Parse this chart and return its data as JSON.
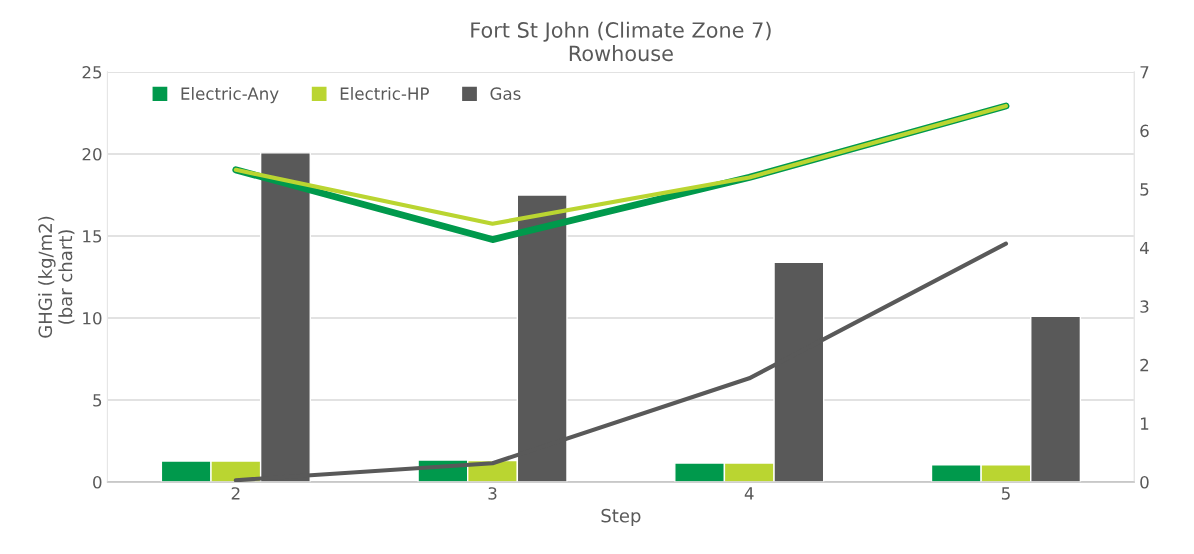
{
  "chart_data": {
    "type": "bar",
    "title": "Fort St John (Climate Zone 7)",
    "subtitle": "Rowhouse",
    "xlabel": "Step",
    "ylabel": "GHGi (kg/m2)\n(bar chart)",
    "categories": [
      "2",
      "3",
      "4",
      "5"
    ],
    "series": [
      {
        "name": "Electric-Any",
        "color": "#00994c",
        "values": [
          1.28,
          1.34,
          1.15,
          1.05
        ]
      },
      {
        "name": "Electric-HP",
        "color": "#bad531",
        "values": [
          1.28,
          1.3,
          1.15,
          1.05
        ]
      },
      {
        "name": "Gas",
        "color": "#595959",
        "values": [
          20.07,
          17.5,
          13.4,
          10.1
        ]
      },
      {
        "type": "line",
        "axis": "y2",
        "color": "#00994c",
        "values": [
          5.33,
          4.14,
          5.2,
          6.42
        ]
      },
      {
        "type": "line",
        "axis": "y2",
        "color": "#bad531",
        "values": [
          5.33,
          4.41,
          5.2,
          6.42
        ]
      },
      {
        "type": "line",
        "axis": "y2",
        "color": "#595959",
        "values": [
          0.03,
          0.32,
          1.77,
          4.07
        ]
      }
    ],
    "ylim": [
      0,
      25
    ],
    "yticks": [
      0,
      5,
      10,
      15,
      20,
      25
    ],
    "y2lim": [
      0,
      7
    ],
    "y2ticks": [
      0,
      1,
      2,
      3,
      4,
      5,
      6,
      7
    ],
    "grid": "y",
    "legend": "top left"
  }
}
